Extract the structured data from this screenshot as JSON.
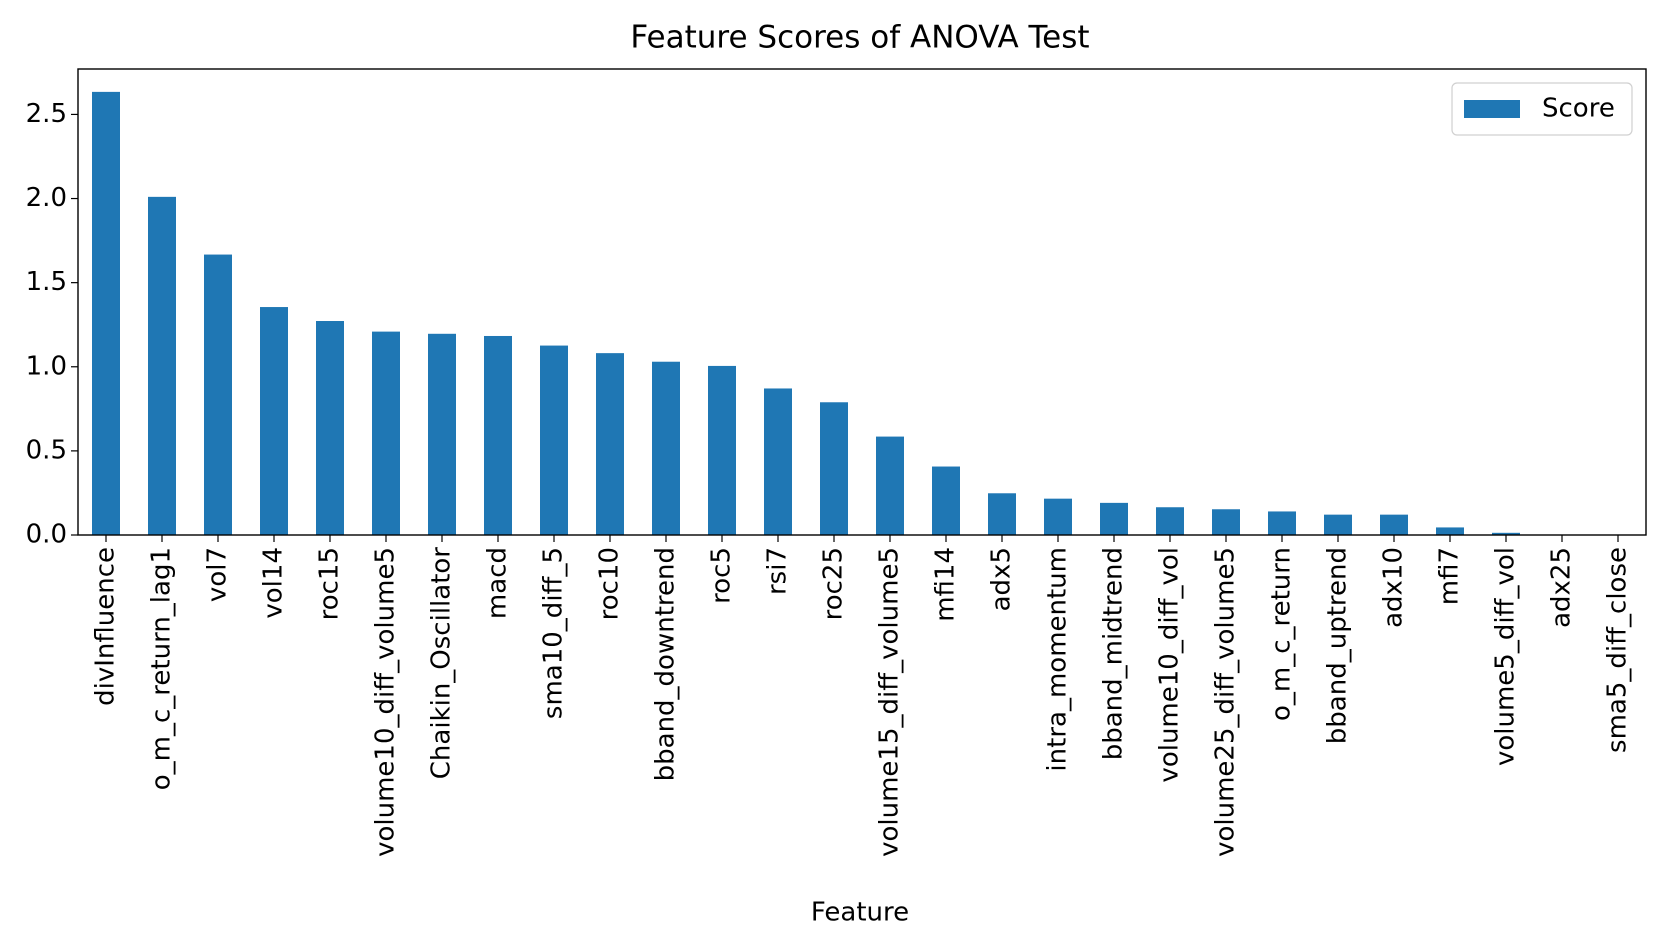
{
  "chart_data": {
    "type": "bar",
    "title": "Feature Scores of ANOVA Test",
    "x_label": "Feature",
    "categories": [
      "divInfluence",
      "o_m_c_return_lag1",
      "vol7",
      "vol14",
      "roc15",
      "volume10_diff_volume5",
      "Chaikin_Oscillator",
      "macd",
      "sma10_diff_5",
      "roc10",
      "bband_downtrend",
      "roc5",
      "rsi7",
      "roc25",
      "volume15_diff_volume5",
      "mfi14",
      "adx5",
      "intra_momentum",
      "bband_midtrend",
      "volume10_diff_vol",
      "volume25_diff_volume5",
      "o_m_c_return",
      "bband_uptrend",
      "adx10",
      "mfi7",
      "volume5_diff_vol",
      "adx25",
      "sma5_diff_close"
    ],
    "series": [
      {
        "name": "Score",
        "color": "#1f77b4",
        "values": [
          2.634,
          2.01,
          1.667,
          1.355,
          1.272,
          1.209,
          1.196,
          1.183,
          1.126,
          1.081,
          1.03,
          1.005,
          0.871,
          0.789,
          0.585,
          0.407,
          0.248,
          0.216,
          0.191,
          0.165,
          0.153,
          0.14,
          0.121,
          0.121,
          0.045,
          0.013,
          0.002,
          0.001
        ]
      }
    ],
    "ylim": [
      0,
      2.77
    ],
    "yticks": [
      {
        "value": 0,
        "label": "0.0"
      },
      {
        "value": 0.5,
        "label": "0.5"
      },
      {
        "value": 1,
        "label": "1.0"
      },
      {
        "value": 1.5,
        "label": "1.5"
      },
      {
        "value": 2,
        "label": "2.0"
      },
      {
        "value": 2.5,
        "label": "2.5"
      }
    ],
    "legend": "upper right",
    "grid": false
  }
}
